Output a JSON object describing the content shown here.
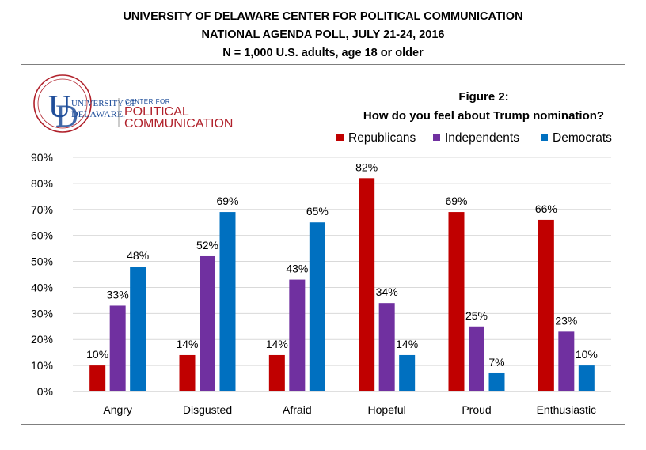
{
  "header": {
    "line1": "UNIVERSITY OF DELAWARE CENTER FOR POLITICAL COMMUNICATION",
    "line2": "NATIONAL AGENDA POLL, JULY 21-24, 2016",
    "line3": "N = 1,000 U.S. adults, age 18 or older"
  },
  "logo": {
    "university_line1": "UNIVERSITY OF",
    "university_line2": "DELAWARE.",
    "center_for": "CENTER FOR",
    "political": "POLITICAL",
    "communication": "COMMUNICATION"
  },
  "figure": {
    "label": "Figure 2:",
    "question": "How do you feel about Trump nomination?"
  },
  "colors": {
    "republicans": "#C00000",
    "independents": "#7030A0",
    "democrats": "#0070C0",
    "gridline": "#d9d9d9",
    "logo_blue": "#1f4e9a",
    "logo_red": "#b0202a"
  },
  "chart_data": {
    "type": "bar",
    "categories": [
      "Angry",
      "Disgusted",
      "Afraid",
      "Hopeful",
      "Proud",
      "Enthusiastic"
    ],
    "series": [
      {
        "name": "Republicans",
        "values": [
          10,
          14,
          14,
          82,
          69,
          66
        ]
      },
      {
        "name": "Independents",
        "values": [
          33,
          52,
          43,
          34,
          25,
          23
        ]
      },
      {
        "name": "Democrats",
        "values": [
          48,
          69,
          65,
          14,
          7,
          10
        ]
      }
    ],
    "ylim": [
      0,
      90
    ],
    "yticks": [
      0,
      10,
      20,
      30,
      40,
      50,
      60,
      70,
      80,
      90
    ],
    "tick_suffix": "%",
    "grid": true,
    "legend_position": "top-right"
  }
}
